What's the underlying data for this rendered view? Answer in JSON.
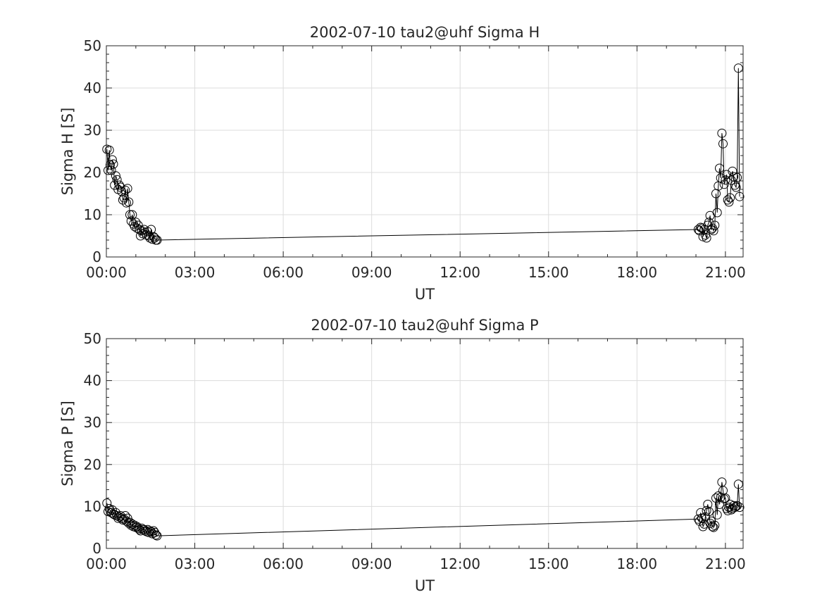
{
  "chart_data": [
    {
      "type": "line",
      "title": "2002-07-10  tau2@uhf Sigma H",
      "xlabel": "UT",
      "ylabel": "Sigma H [S]",
      "x_unit": "hours UT",
      "xlim": [
        0,
        21.6
      ],
      "ylim": [
        0,
        50
      ],
      "xticks": [
        0,
        3,
        6,
        9,
        12,
        15,
        18,
        21
      ],
      "xtick_labels": [
        "00:00",
        "03:00",
        "06:00",
        "09:00",
        "12:00",
        "15:00",
        "18:00",
        "21:00"
      ],
      "yticks": [
        0,
        10,
        20,
        30,
        40,
        50
      ],
      "ytick_labels": [
        "0",
        "10",
        "20",
        "30",
        "40",
        "50"
      ],
      "grid": true,
      "marker": "open-circle",
      "color": "#000000",
      "x": [
        0.02,
        0.06,
        0.1,
        0.13,
        0.17,
        0.2,
        0.24,
        0.28,
        0.32,
        0.36,
        0.4,
        0.44,
        0.48,
        0.52,
        0.56,
        0.6,
        0.64,
        0.68,
        0.72,
        0.76,
        0.8,
        0.84,
        0.88,
        0.92,
        0.96,
        1.0,
        1.04,
        1.08,
        1.12,
        1.16,
        1.2,
        1.24,
        1.28,
        1.32,
        1.36,
        1.4,
        1.44,
        1.48,
        1.52,
        1.56,
        1.6,
        1.64,
        1.68,
        1.72,
        20.08,
        20.12,
        20.16,
        20.2,
        20.24,
        20.28,
        20.32,
        20.36,
        20.4,
        20.44,
        20.48,
        20.52,
        20.56,
        20.6,
        20.64,
        20.68,
        20.72,
        20.76,
        20.8,
        20.84,
        20.88,
        20.92,
        20.96,
        21.0,
        21.04,
        21.08,
        21.12,
        21.16,
        21.2,
        21.24,
        21.28,
        21.32,
        21.36,
        21.4,
        21.44,
        21.48
      ],
      "y": [
        25.5,
        20.5,
        25.3,
        21.8,
        20.5,
        23.0,
        22.0,
        17.0,
        19.2,
        18.3,
        16.0,
        17.0,
        16.5,
        15.5,
        13.5,
        14.0,
        15.8,
        12.8,
        16.2,
        13.0,
        10.0,
        8.5,
        10.0,
        7.8,
        7.2,
        8.2,
        6.8,
        7.5,
        6.5,
        5.0,
        6.2,
        5.5,
        6.5,
        5.8,
        5.2,
        6.0,
        5.0,
        4.5,
        6.5,
        4.2,
        4.8,
        4.5,
        4.0,
        4.0,
        6.5,
        6.2,
        7.0,
        6.8,
        4.8,
        6.5,
        5.2,
        4.5,
        7.5,
        8.2,
        9.8,
        6.5,
        6.8,
        6.2,
        7.5,
        15.0,
        10.5,
        16.8,
        21.0,
        18.7,
        29.3,
        26.8,
        17.2,
        18.2,
        19.5,
        13.5,
        13.0,
        14.0,
        18.2,
        20.3,
        19.0,
        17.0,
        16.5,
        18.8,
        44.7,
        14.3
      ]
    },
    {
      "type": "line",
      "title": "2002-07-10  tau2@uhf Sigma P",
      "xlabel": "UT",
      "ylabel": "Sigma P [S]",
      "x_unit": "hours UT",
      "xlim": [
        0,
        21.6
      ],
      "ylim": [
        0,
        50
      ],
      "xticks": [
        0,
        3,
        6,
        9,
        12,
        15,
        18,
        21
      ],
      "xtick_labels": [
        "00:00",
        "03:00",
        "06:00",
        "09:00",
        "12:00",
        "15:00",
        "18:00",
        "21:00"
      ],
      "yticks": [
        0,
        10,
        20,
        30,
        40,
        50
      ],
      "ytick_labels": [
        "0",
        "10",
        "20",
        "30",
        "40",
        "50"
      ],
      "grid": true,
      "marker": "open-circle",
      "color": "#000000",
      "x": [
        0.02,
        0.06,
        0.1,
        0.13,
        0.17,
        0.2,
        0.24,
        0.28,
        0.32,
        0.36,
        0.4,
        0.44,
        0.48,
        0.52,
        0.56,
        0.6,
        0.64,
        0.68,
        0.72,
        0.76,
        0.8,
        0.84,
        0.88,
        0.92,
        0.96,
        1.0,
        1.04,
        1.08,
        1.12,
        1.16,
        1.2,
        1.24,
        1.28,
        1.32,
        1.36,
        1.4,
        1.44,
        1.48,
        1.52,
        1.56,
        1.6,
        1.64,
        1.68,
        1.72,
        20.08,
        20.12,
        20.16,
        20.2,
        20.24,
        20.28,
        20.32,
        20.36,
        20.4,
        20.44,
        20.48,
        20.52,
        20.56,
        20.6,
        20.64,
        20.68,
        20.72,
        20.76,
        20.8,
        20.84,
        20.88,
        20.92,
        20.96,
        21.0,
        21.04,
        21.08,
        21.12,
        21.16,
        21.2,
        21.24,
        21.28,
        21.32,
        21.36,
        21.4,
        21.44,
        21.48
      ],
      "y": [
        10.8,
        8.8,
        9.5,
        9.0,
        8.5,
        9.2,
        8.2,
        8.0,
        8.5,
        7.8,
        7.2,
        7.5,
        7.8,
        7.2,
        6.8,
        7.0,
        7.8,
        6.5,
        7.2,
        6.0,
        6.2,
        5.5,
        5.8,
        5.2,
        5.5,
        5.0,
        5.2,
        4.8,
        4.5,
        4.2,
        4.8,
        4.5,
        4.5,
        4.2,
        4.0,
        4.5,
        3.8,
        4.2,
        4.0,
        3.5,
        4.2,
        3.8,
        3.2,
        3.0,
        7.0,
        6.5,
        8.5,
        7.2,
        5.2,
        5.8,
        7.5,
        9.0,
        10.5,
        8.8,
        6.0,
        6.5,
        5.2,
        5.0,
        5.5,
        12.0,
        8.0,
        12.5,
        10.5,
        12.2,
        15.8,
        13.8,
        11.8,
        12.0,
        9.5,
        9.0,
        9.8,
        10.5,
        9.2,
        9.5,
        10.2,
        9.8,
        10.0,
        10.2,
        15.3,
        9.8
      ]
    }
  ]
}
